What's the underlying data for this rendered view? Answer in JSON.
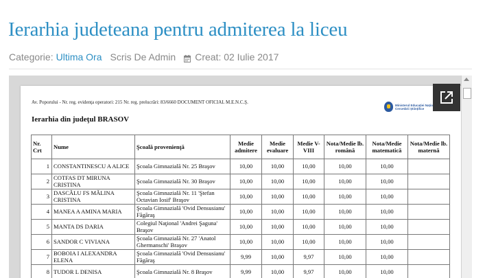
{
  "article": {
    "title": "Ierarhia judeteana pentru admiterea la liceu",
    "category_label": "Categorie:",
    "category_link": "Ultima Ora",
    "author": "Scris De Admin",
    "created": "Creat: 02 Iulie 2017"
  },
  "document": {
    "header_line": "Av. Poporului - Nr. reg. evidenţa operatori: 215 Nr. reg. prelucrări: 83/6660 DOCUMENT OFICIAL M.E.N.C.Ş.",
    "logo_text": "Ministerul Educației Naționale și Cercetării Științifice",
    "subtitle": "Ierarhia din judeţul BRASOV",
    "columns": [
      "Nr. Crt",
      "Nume",
      "Şcoală provenienţă",
      "Medie admitere",
      "Medie evaluare",
      "Medie V-VIII",
      "Nota/Medie lb. română",
      "Nota/Medie matematică",
      "Nota/Medie lb. maternă"
    ],
    "rows": [
      [
        "1",
        "CONSTANTINESCU A ALICE",
        "Şcoala Gimnazială Nr. 25 Braşov",
        "10,00",
        "10,00",
        "10,00",
        "10,00",
        "10,00",
        ""
      ],
      [
        "2",
        "COTFAS DT MIRUNA CRISTINA",
        "Şcoala Gimnazială Nr. 30 Braşov",
        "10,00",
        "10,00",
        "10,00",
        "10,00",
        "10,00",
        ""
      ],
      [
        "3",
        "DASCĂLU FS MĂLINA CRISTINA",
        "Şcoala Gimnazială Nr. 11 'Ştefan Octavian Iosif' Braşov",
        "10,00",
        "10,00",
        "10,00",
        "10,00",
        "10,00",
        ""
      ],
      [
        "4",
        "MANEA A AMINA MARIA",
        "Şcoala Gimnazială 'Ovid Densusianu' Făgăraş",
        "10,00",
        "10,00",
        "10,00",
        "10,00",
        "10,00",
        ""
      ],
      [
        "5",
        "MANTA DS DARIA",
        "Colegiul Naţional 'Andrei Şaguna' Braşov",
        "10,00",
        "10,00",
        "10,00",
        "10,00",
        "10,00",
        ""
      ],
      [
        "6",
        "SANDOR C VIVIANA",
        "Şcoala Gimnazială Nr. 27 'Anatol Ghermanschi' Braşov",
        "10,00",
        "10,00",
        "10,00",
        "10,00",
        "10,00",
        ""
      ],
      [
        "7",
        "BOBOIA I ALEXANDRA ELENA",
        "Şcoala Gimnazială 'Ovid Densusianu' Făgăraş",
        "9,99",
        "10,00",
        "9,97",
        "10,00",
        "10,00",
        ""
      ],
      [
        "8",
        "TUDOR L DENISA",
        "Şcoala Gimnazială Nr. 8 Braşov",
        "9,99",
        "10,00",
        "9,97",
        "10,00",
        "10,00",
        ""
      ]
    ]
  },
  "icons": {
    "calendar": "calendar-icon",
    "open": "open-in-new-icon"
  },
  "colors": {
    "accent": "#2d8fc4",
    "meta": "#888888",
    "viewer_bg": "#d8d8d8",
    "button_bg": "#333333"
  }
}
